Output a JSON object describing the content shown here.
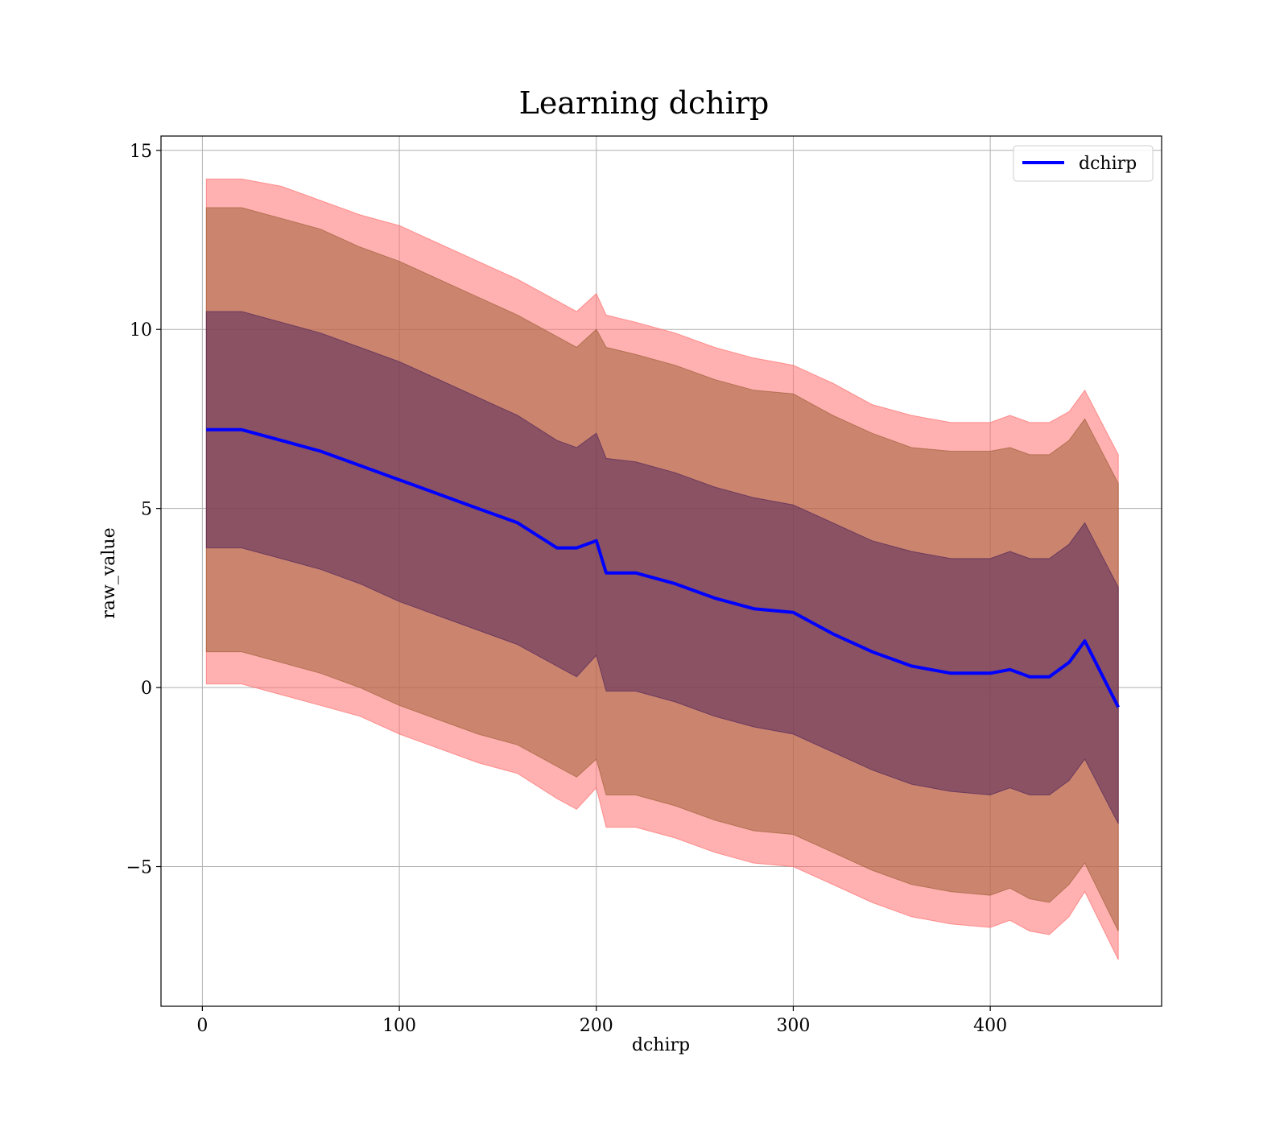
{
  "chart_data": {
    "type": "line",
    "title": "Learning dchirp",
    "xlabel": "dchirp",
    "ylabel": "raw_value",
    "xlim": [
      -21,
      487
    ],
    "ylim": [
      -8.9,
      15.4
    ],
    "xticks": [
      0,
      100,
      200,
      300,
      400
    ],
    "xtick_labels": [
      "0",
      "100",
      "200",
      "300",
      "400"
    ],
    "yticks": [
      -5,
      0,
      5,
      10,
      15
    ],
    "ytick_labels": [
      "−5",
      "0",
      "5",
      "10",
      "15"
    ],
    "grid": true,
    "legend": {
      "position": "top-right",
      "entries": [
        "dchirp"
      ]
    },
    "colors": {
      "mean": "#0000ff",
      "band3": "#ff6f6f",
      "band2": "#a0633a",
      "band1": "#56285a"
    },
    "series": [
      {
        "name": "dchirp",
        "x": [
          2,
          20,
          40,
          60,
          80,
          100,
          120,
          140,
          160,
          180,
          190,
          200,
          205,
          220,
          240,
          260,
          280,
          300,
          320,
          340,
          360,
          380,
          400,
          410,
          420,
          430,
          440,
          448,
          465
        ],
        "y": [
          7.2,
          7.2,
          6.9,
          6.6,
          6.2,
          5.8,
          5.4,
          5.0,
          4.6,
          3.9,
          3.9,
          4.1,
          3.2,
          3.2,
          2.9,
          2.5,
          2.2,
          2.1,
          1.5,
          1.0,
          0.6,
          0.4,
          0.4,
          0.5,
          0.3,
          0.3,
          0.7,
          1.3,
          -0.55
        ]
      }
    ],
    "bands": [
      {
        "level": "3 sigma",
        "x": [
          2,
          20,
          40,
          60,
          80,
          100,
          120,
          140,
          160,
          180,
          190,
          200,
          205,
          220,
          240,
          260,
          280,
          300,
          320,
          340,
          360,
          380,
          400,
          410,
          420,
          430,
          440,
          448,
          465
        ],
        "upper": [
          14.2,
          14.2,
          14.0,
          13.6,
          13.2,
          12.9,
          12.4,
          11.9,
          11.4,
          10.8,
          10.5,
          11.0,
          10.4,
          10.2,
          9.9,
          9.5,
          9.2,
          9.0,
          8.5,
          7.9,
          7.6,
          7.4,
          7.4,
          7.6,
          7.4,
          7.4,
          7.7,
          8.3,
          6.5
        ],
        "lower": [
          0.1,
          0.1,
          -0.2,
          -0.5,
          -0.8,
          -1.3,
          -1.7,
          -2.1,
          -2.4,
          -3.1,
          -3.4,
          -2.8,
          -3.9,
          -3.9,
          -4.2,
          -4.6,
          -4.9,
          -5.0,
          -5.5,
          -6.0,
          -6.4,
          -6.6,
          -6.7,
          -6.5,
          -6.8,
          -6.9,
          -6.4,
          -5.7,
          -7.6
        ]
      },
      {
        "level": "2 sigma",
        "x": [
          2,
          20,
          40,
          60,
          80,
          100,
          120,
          140,
          160,
          180,
          190,
          200,
          205,
          220,
          240,
          260,
          280,
          300,
          320,
          340,
          360,
          380,
          400,
          410,
          420,
          430,
          440,
          448,
          465
        ],
        "upper": [
          13.4,
          13.4,
          13.1,
          12.8,
          12.3,
          11.9,
          11.4,
          10.9,
          10.4,
          9.8,
          9.5,
          10.0,
          9.5,
          9.3,
          9.0,
          8.6,
          8.3,
          8.2,
          7.6,
          7.1,
          6.7,
          6.6,
          6.6,
          6.7,
          6.5,
          6.5,
          6.9,
          7.5,
          5.7
        ],
        "lower": [
          1.0,
          1.0,
          0.7,
          0.4,
          0.0,
          -0.5,
          -0.9,
          -1.3,
          -1.6,
          -2.2,
          -2.5,
          -2.0,
          -3.0,
          -3.0,
          -3.3,
          -3.7,
          -4.0,
          -4.1,
          -4.6,
          -5.1,
          -5.5,
          -5.7,
          -5.8,
          -5.6,
          -5.9,
          -6.0,
          -5.5,
          -4.9,
          -6.8
        ]
      },
      {
        "level": "1 sigma",
        "x": [
          2,
          20,
          40,
          60,
          80,
          100,
          120,
          140,
          160,
          180,
          190,
          200,
          205,
          220,
          240,
          260,
          280,
          300,
          320,
          340,
          360,
          380,
          400,
          410,
          420,
          430,
          440,
          448,
          465
        ],
        "upper": [
          10.5,
          10.5,
          10.2,
          9.9,
          9.5,
          9.1,
          8.6,
          8.1,
          7.6,
          6.9,
          6.7,
          7.1,
          6.4,
          6.3,
          6.0,
          5.6,
          5.3,
          5.1,
          4.6,
          4.1,
          3.8,
          3.6,
          3.6,
          3.8,
          3.6,
          3.6,
          4.0,
          4.6,
          2.8
        ],
        "lower": [
          3.9,
          3.9,
          3.6,
          3.3,
          2.9,
          2.4,
          2.0,
          1.6,
          1.2,
          0.6,
          0.3,
          0.9,
          -0.1,
          -0.1,
          -0.4,
          -0.8,
          -1.1,
          -1.3,
          -1.8,
          -2.3,
          -2.7,
          -2.9,
          -3.0,
          -2.8,
          -3.0,
          -3.0,
          -2.6,
          -2.0,
          -3.8
        ]
      }
    ]
  }
}
